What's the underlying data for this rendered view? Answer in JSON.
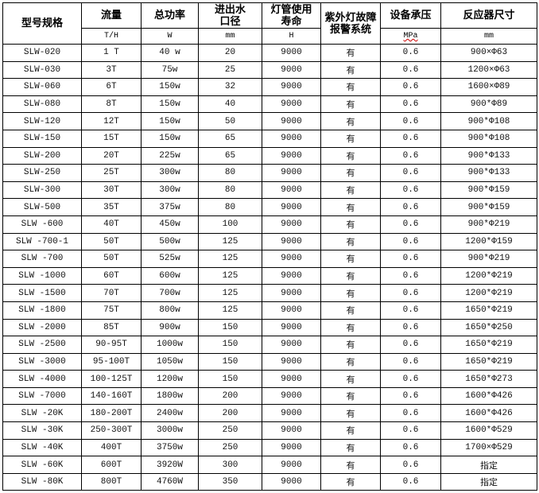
{
  "table": {
    "headers": [
      "型号规格",
      "流量",
      "总功率",
      "进出水口径",
      "灯管使用寿命",
      "紫外灯故障报警系统",
      "设备承压",
      "反应器尺寸"
    ],
    "units": [
      "T/H",
      "W",
      "mm",
      "H",
      "MPa",
      "mm"
    ],
    "rows": [
      [
        "SLW-020",
        "1 T",
        "40 w",
        "20",
        "9000",
        "有",
        "0.6",
        "900×Φ63"
      ],
      [
        "SLW-030",
        "3T",
        "75w",
        "25",
        "9000",
        "有",
        "0.6",
        "1200×Φ63"
      ],
      [
        "SLW-060",
        "6T",
        "150w",
        "32",
        "9000",
        "有",
        "0.6",
        "1600×Φ89"
      ],
      [
        "SLW-080",
        "8T",
        "150w",
        "40",
        "9000",
        "有",
        "0.6",
        "900*Φ89"
      ],
      [
        "SLW-120",
        "12T",
        "150w",
        "50",
        "9000",
        "有",
        "0.6",
        "900*Φ108"
      ],
      [
        "SLW-150",
        "15T",
        "150w",
        "65",
        "9000",
        "有",
        "0.6",
        "900*Φ108"
      ],
      [
        "SLW-200",
        "20T",
        "225w",
        "65",
        "9000",
        "有",
        "0.6",
        "900*Φ133"
      ],
      [
        "SLW-250",
        "25T",
        "300w",
        "80",
        "9000",
        "有",
        "0.6",
        "900*Φ133"
      ],
      [
        "SLW-300",
        "30T",
        "300w",
        "80",
        "9000",
        "有",
        "0.6",
        "900*Φ159"
      ],
      [
        "SLW-500",
        "35T",
        "375w",
        "80",
        "9000",
        "有",
        "0.6",
        "900*Φ159"
      ],
      [
        "SLW -600",
        "40T",
        "450w",
        "100",
        "9000",
        "有",
        "0.6",
        "900*Φ219"
      ],
      [
        "SLW -700-1",
        "50T",
        "500w",
        "125",
        "9000",
        "有",
        "0.6",
        "1200*Φ159"
      ],
      [
        "SLW -700",
        "50T",
        "525w",
        "125",
        "9000",
        "有",
        "0.6",
        "900*Φ219"
      ],
      [
        "SLW -1000",
        "60T",
        "600w",
        "125",
        "9000",
        "有",
        "0.6",
        "1200*Φ219"
      ],
      [
        "SLW -1500",
        "70T",
        "700w",
        "125",
        "9000",
        "有",
        "0.6",
        "1200*Φ219"
      ],
      [
        "SLW -1800",
        "75T",
        "800w",
        "125",
        "9000",
        "有",
        "0.6",
        "1650*Φ219"
      ],
      [
        "SLW -2000",
        "85T",
        "900w",
        "150",
        "9000",
        "有",
        "0.6",
        "1650*Φ250"
      ],
      [
        "SLW -2500",
        "90-95T",
        "1000w",
        "150",
        "9000",
        "有",
        "0.6",
        "1650*Φ219"
      ],
      [
        "SLW -3000",
        "95-100T",
        "1050w",
        "150",
        "9000",
        "有",
        "0.6",
        "1650*Φ219"
      ],
      [
        "SLW -4000",
        "100-125T",
        "1200w",
        "150",
        "9000",
        "有",
        "0.6",
        "1650*Φ273"
      ],
      [
        "SLW -7000",
        "140-160T",
        "1800w",
        "200",
        "9000",
        "有",
        "0.6",
        "1600*Φ426"
      ],
      [
        "SLW -20K",
        "180-200T",
        "2400w",
        "200",
        "9000",
        "有",
        "0.6",
        "1600*Φ426"
      ],
      [
        "SLW -30K",
        "250-300T",
        "3000w",
        "250",
        "9000",
        "有",
        "0.6",
        "1600*Φ529"
      ],
      [
        "SLW -40K",
        "400T",
        "3750w",
        "250",
        "9000",
        "有",
        "0.6",
        "1700×Φ529"
      ],
      [
        "SLW -60K",
        "600T",
        "3920W",
        "300",
        "9000",
        "有",
        "0.6",
        "指定"
      ],
      [
        "SLW -80K",
        "800T",
        "4760W",
        "350",
        "9000",
        "有",
        "0.6",
        "指定"
      ]
    ]
  }
}
